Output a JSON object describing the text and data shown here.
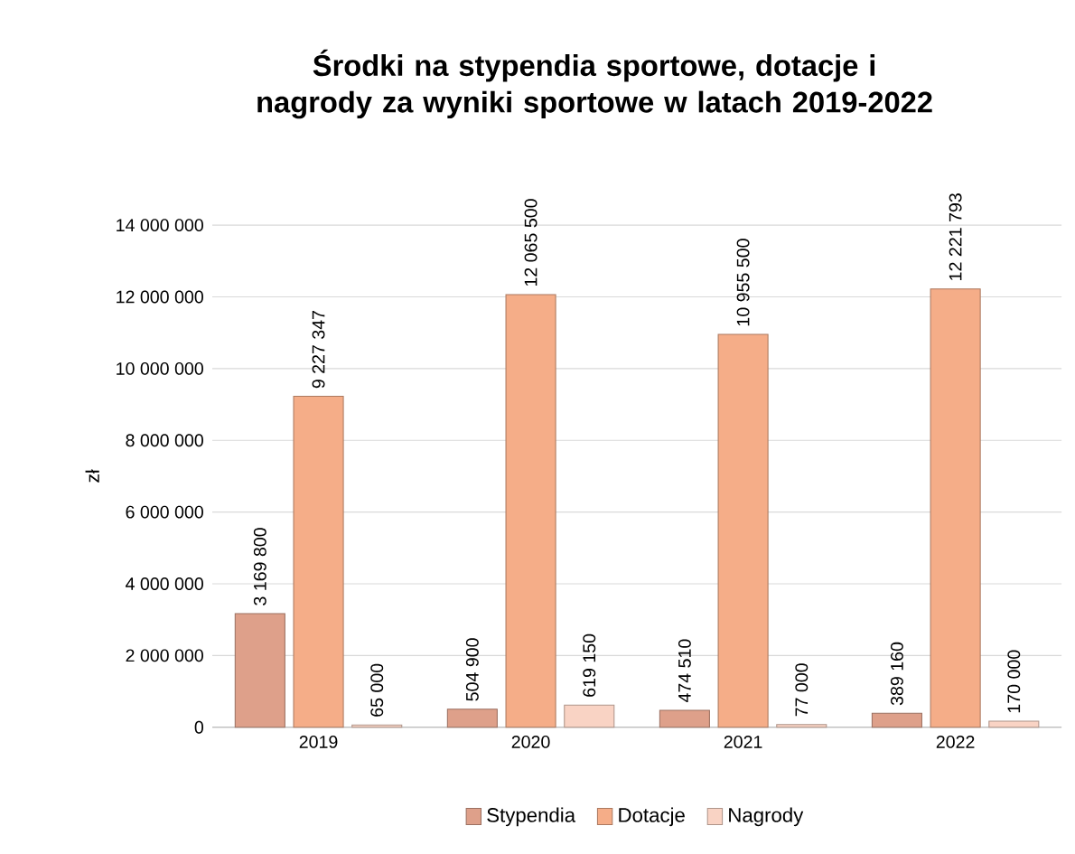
{
  "chart_data": {
    "type": "bar",
    "title": "Środki na stypendia sportowe, dotacje i nagrody za wyniki sportowe w latach 2019-2022",
    "ylabel": "zł",
    "categories": [
      "2019",
      "2020",
      "2021",
      "2022"
    ],
    "series": [
      {
        "name": "Stypendia",
        "color": "#dea08a",
        "values": [
          3169800,
          504900,
          474510,
          389160
        ],
        "value_labels": [
          "3 169 800",
          "504 900",
          "474 510",
          "389 160"
        ]
      },
      {
        "name": "Dotacje",
        "color": "#f5ad88",
        "values": [
          9227347,
          12065500,
          10955500,
          12221793
        ],
        "value_labels": [
          "9 227 347",
          "12 065 500",
          "10 955 500",
          "12 221 793"
        ]
      },
      {
        "name": "Nagrody",
        "color": "#f9d3c4",
        "values": [
          65000,
          619150,
          77000,
          170000
        ],
        "value_labels": [
          "65 000",
          "619 150",
          "77 000",
          "170 000"
        ]
      }
    ],
    "ylim": [
      0,
      14000000
    ],
    "yticks": [
      {
        "value": 0,
        "label": "0"
      },
      {
        "value": 2000000,
        "label": "2 000 000"
      },
      {
        "value": 4000000,
        "label": "4 000 000"
      },
      {
        "value": 6000000,
        "label": "6 000 000"
      },
      {
        "value": 8000000,
        "label": "8 000 000"
      },
      {
        "value": 10000000,
        "label": "10 000 000"
      },
      {
        "value": 12000000,
        "label": "12 000 000"
      },
      {
        "value": 14000000,
        "label": "14 000 000"
      }
    ],
    "grid": "y",
    "legend": "bottom"
  }
}
